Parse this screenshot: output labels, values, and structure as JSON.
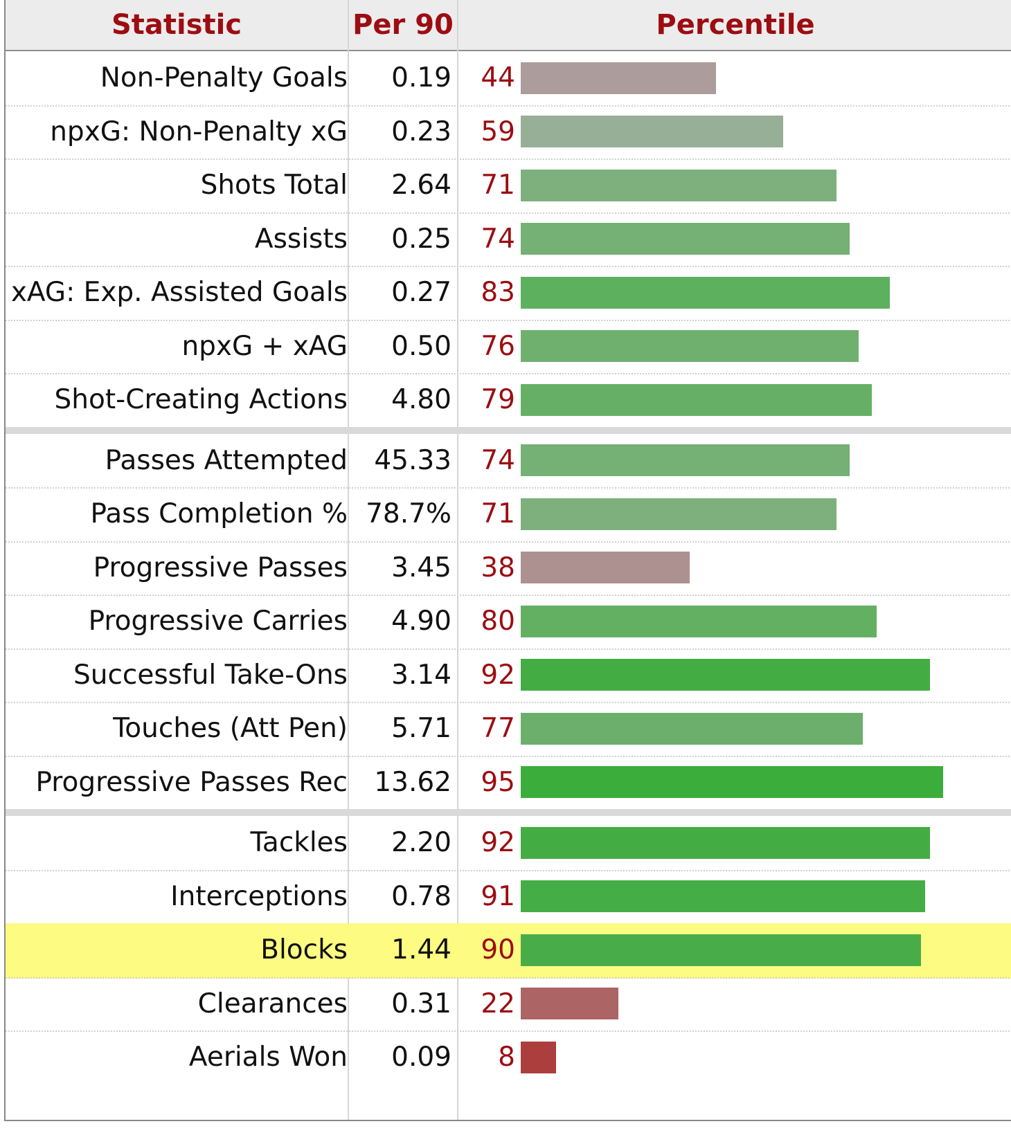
{
  "header": {
    "statistic": "Statistic",
    "per90": "Per 90",
    "percentile": "Percentile"
  },
  "groups": [
    [
      {
        "stat": "Non-Penalty Goals",
        "per90": "0.19",
        "pct": 44,
        "color": "#ad9c9c"
      },
      {
        "stat": "npxG: Non-Penalty xG",
        "per90": "0.23",
        "pct": 59,
        "color": "#97ae97"
      },
      {
        "stat": "Shots Total",
        "per90": "2.64",
        "pct": 71,
        "color": "#7db07d"
      },
      {
        "stat": "Assists",
        "per90": "0.25",
        "pct": 74,
        "color": "#75b075"
      },
      {
        "stat": "xAG: Exp. Assisted Goals",
        "per90": "0.27",
        "pct": 83,
        "color": "#5db05d"
      },
      {
        "stat": "npxG + xAG",
        "per90": "0.50",
        "pct": 76,
        "color": "#6fb06f"
      },
      {
        "stat": "Shot-Creating Actions",
        "per90": "4.80",
        "pct": 79,
        "color": "#65b065"
      }
    ],
    [
      {
        "stat": "Passes Attempted",
        "per90": "45.33",
        "pct": 74,
        "color": "#75b075"
      },
      {
        "stat": "Pass Completion %",
        "per90": "78.7%",
        "pct": 71,
        "color": "#7db07d"
      },
      {
        "stat": "Progressive Passes",
        "per90": "3.45",
        "pct": 38,
        "color": "#ad9090"
      },
      {
        "stat": "Progressive Carries",
        "per90": "4.90",
        "pct": 80,
        "color": "#63b063"
      },
      {
        "stat": "Successful Take-Ons",
        "per90": "3.14",
        "pct": 92,
        "color": "#43ad43"
      },
      {
        "stat": "Touches (Att Pen)",
        "per90": "5.71",
        "pct": 77,
        "color": "#6caf6c"
      },
      {
        "stat": "Progressive Passes Rec",
        "per90": "13.62",
        "pct": 95,
        "color": "#3bad3b"
      }
    ],
    [
      {
        "stat": "Tackles",
        "per90": "2.20",
        "pct": 92,
        "color": "#43ad43"
      },
      {
        "stat": "Interceptions",
        "per90": "0.78",
        "pct": 91,
        "color": "#45ad45"
      },
      {
        "stat": "Blocks",
        "per90": "1.44",
        "pct": 90,
        "color": "#48ad48",
        "highlight": true
      },
      {
        "stat": "Clearances",
        "per90": "0.31",
        "pct": 22,
        "color": "#ad6464"
      },
      {
        "stat": "Aerials Won",
        "per90": "0.09",
        "pct": 8,
        "color": "#ad3e3e"
      }
    ]
  ]
}
